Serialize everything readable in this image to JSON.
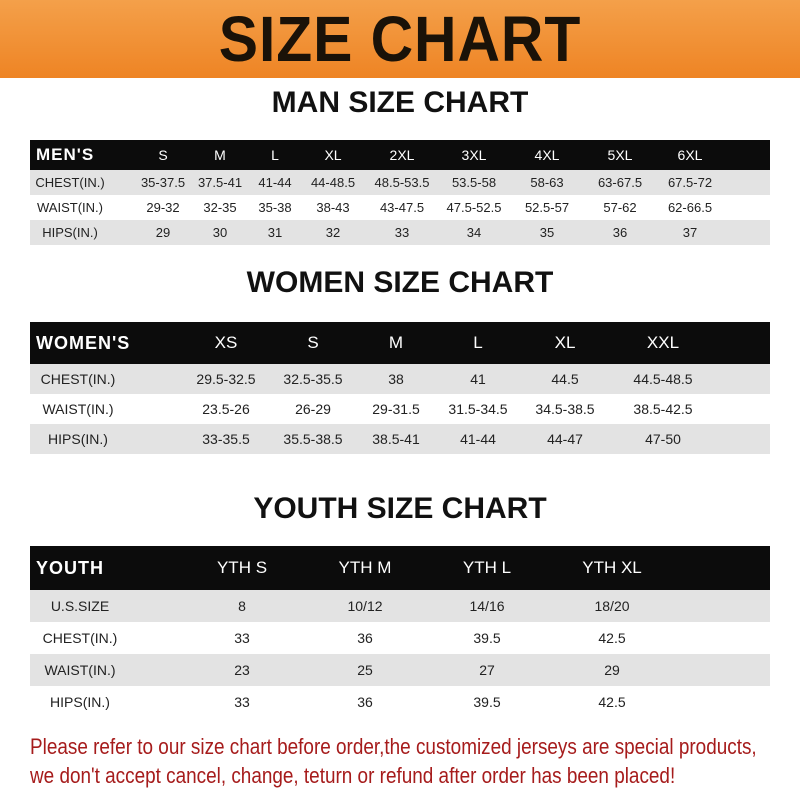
{
  "banner_title": "SIZE CHART",
  "men": {
    "title": "MAN SIZE CHART",
    "header": [
      "MEN'S",
      "S",
      "M",
      "L",
      "XL",
      "2XL",
      "3XL",
      "4XL",
      "5XL",
      "6XL"
    ],
    "rows": [
      [
        "CHEST(IN.)",
        "35-37.5",
        "37.5-41",
        "41-44",
        "44-48.5",
        "48.5-53.5",
        "53.5-58",
        "58-63",
        "63-67.5",
        "67.5-72"
      ],
      [
        "WAIST(IN.)",
        "29-32",
        "32-35",
        "35-38",
        "38-43",
        "43-47.5",
        "47.5-52.5",
        "52.5-57",
        "57-62",
        "62-66.5"
      ],
      [
        "HIPS(IN.)",
        "29",
        "30",
        "31",
        "32",
        "33",
        "34",
        "35",
        "36",
        "37"
      ]
    ]
  },
  "women": {
    "title": "WOMEN SIZE CHART",
    "header": [
      "WOMEN'S",
      "XS",
      "S",
      "M",
      "L",
      "XL",
      "XXL"
    ],
    "rows": [
      [
        "CHEST(IN.)",
        "29.5-32.5",
        "32.5-35.5",
        "38",
        "41",
        "44.5",
        "44.5-48.5"
      ],
      [
        "WAIST(IN.)",
        "23.5-26",
        "26-29",
        "29-31.5",
        "31.5-34.5",
        "34.5-38.5",
        "38.5-42.5"
      ],
      [
        "HIPS(IN.)",
        "33-35.5",
        "35.5-38.5",
        "38.5-41",
        "41-44",
        "44-47",
        "47-50"
      ]
    ]
  },
  "youth": {
    "title": "YOUTH SIZE CHART",
    "header": [
      "YOUTH",
      "YTH S",
      "YTH M",
      "YTH L",
      "YTH XL"
    ],
    "rows": [
      [
        "U.S.SIZE",
        "8",
        "10/12",
        "14/16",
        "18/20"
      ],
      [
        "CHEST(IN.)",
        "33",
        "36",
        "39.5",
        "42.5"
      ],
      [
        "WAIST(IN.)",
        "23",
        "25",
        "27",
        "29"
      ],
      [
        "HIPS(IN.)",
        "33",
        "36",
        "39.5",
        "42.5"
      ]
    ]
  },
  "notice": [
    "Please refer to our size chart before order,the customized jerseys are special products,",
    "we don't accept cancel, change, teturn or refund after order has been placed!"
  ],
  "colors": {
    "banner": "#ee8424",
    "header_row": "#0c0c0c",
    "stripe": "#e3e3e3",
    "notice": "#a61c1c"
  }
}
